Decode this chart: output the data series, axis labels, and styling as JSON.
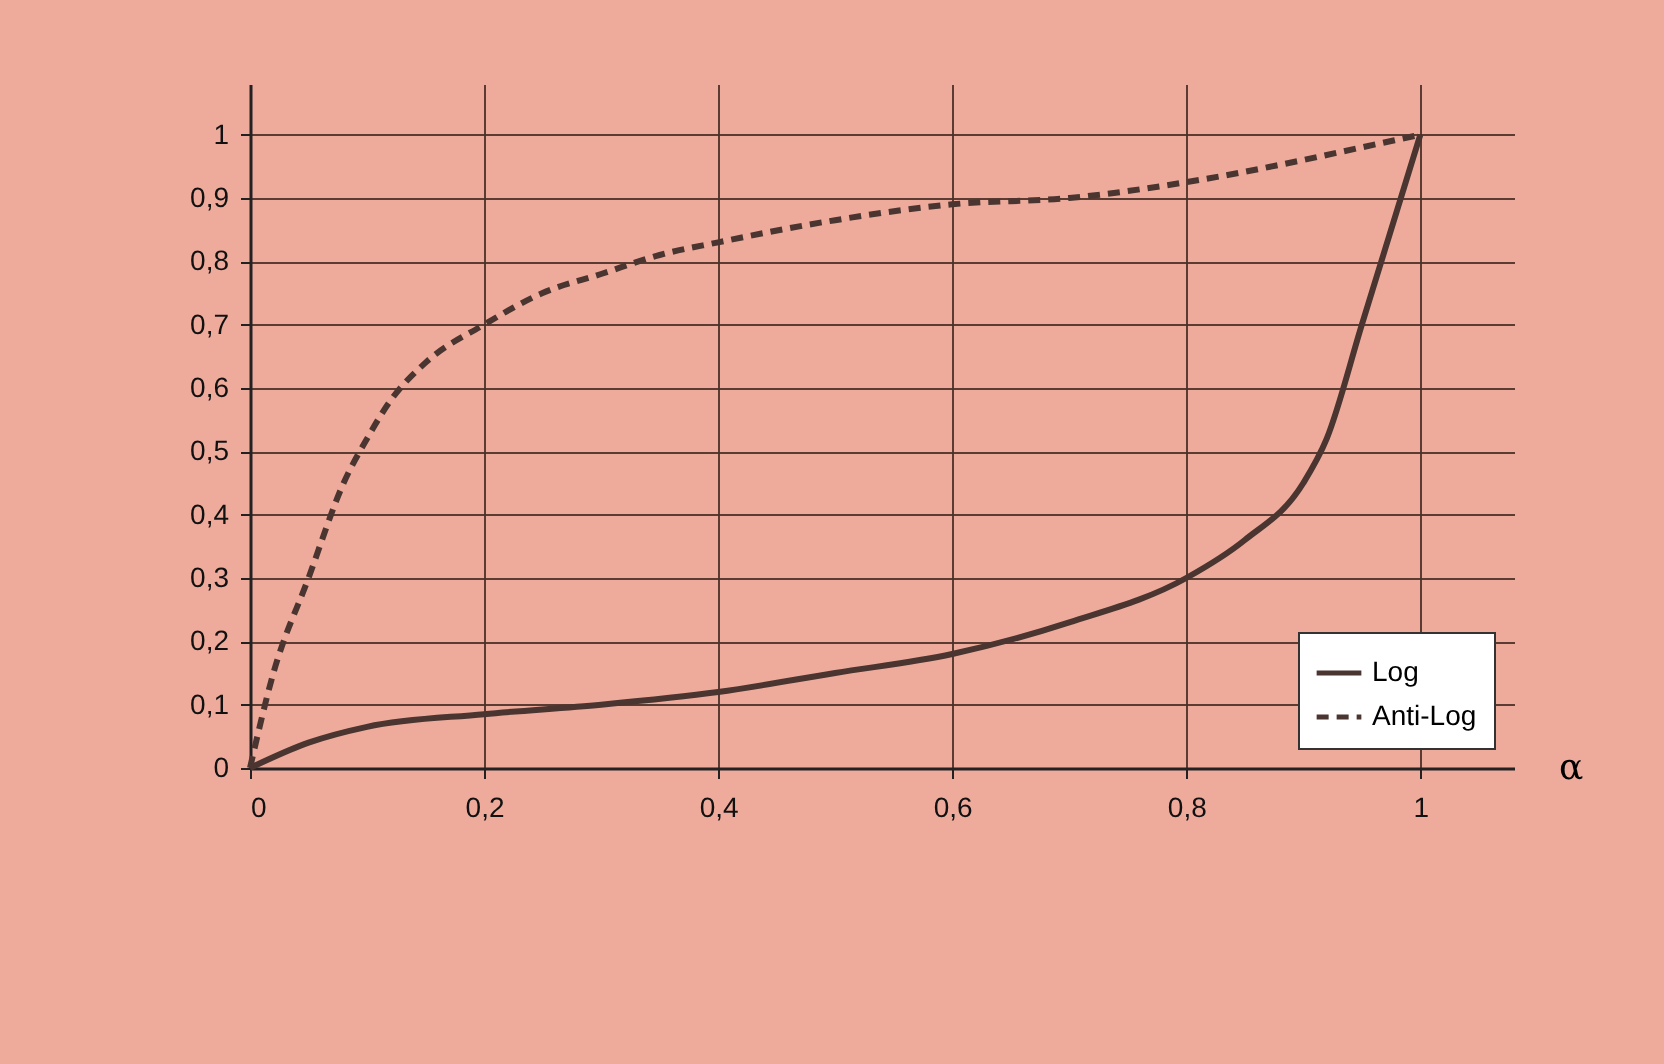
{
  "chart_data": {
    "type": "line",
    "xlabel": "α",
    "xlim": [
      0,
      1.08
    ],
    "ylim": [
      0,
      1.08
    ],
    "xticks": [
      0,
      {
        "value": 0.2,
        "label": "0,2"
      },
      {
        "value": 0.4,
        "label": "0,4"
      },
      {
        "value": 0.6,
        "label": "0,6"
      },
      {
        "value": 0.8,
        "label": "0,8"
      },
      1
    ],
    "yticks": [
      0,
      {
        "value": 0.1,
        "label": "0,1"
      },
      {
        "value": 0.2,
        "label": "0,2"
      },
      {
        "value": 0.3,
        "label": "0,3"
      },
      {
        "value": 0.4,
        "label": "0,4"
      },
      {
        "value": 0.5,
        "label": "0,5"
      },
      {
        "value": 0.6,
        "label": "0,6"
      },
      {
        "value": 0.7,
        "label": "0,7"
      },
      {
        "value": 0.8,
        "label": "0,8"
      },
      {
        "value": 0.9,
        "label": "0,9"
      },
      1
    ],
    "grid": true,
    "legend": "bottom right",
    "marker": "none",
    "series": [
      {
        "name": "Log",
        "color": "#4a3530",
        "line_style": "solid",
        "x": [
          0,
          0.05,
          0.1,
          0.2,
          0.3,
          0.4,
          0.5,
          0.6,
          0.7,
          0.8,
          0.85,
          0.9,
          0.92,
          0.95,
          0.98,
          1
        ],
        "values": [
          0,
          0.04,
          0.065,
          0.085,
          0.1,
          0.12,
          0.15,
          0.18,
          0.23,
          0.3,
          0.36,
          0.45,
          0.52,
          0.7,
          0.88,
          1
        ]
      },
      {
        "name": "Anti-Log",
        "color": "#4a3530",
        "line_style": "dashed",
        "x": [
          0,
          0.02,
          0.05,
          0.08,
          0.1,
          0.12,
          0.15,
          0.2,
          0.25,
          0.3,
          0.35,
          0.4,
          0.5,
          0.6,
          0.7,
          0.8,
          0.9,
          0.95,
          1
        ],
        "values": [
          0,
          0.15,
          0.3,
          0.45,
          0.52,
          0.58,
          0.64,
          0.7,
          0.75,
          0.78,
          0.81,
          0.83,
          0.865,
          0.89,
          0.9,
          0.925,
          0.96,
          0.98,
          1
        ]
      }
    ]
  }
}
